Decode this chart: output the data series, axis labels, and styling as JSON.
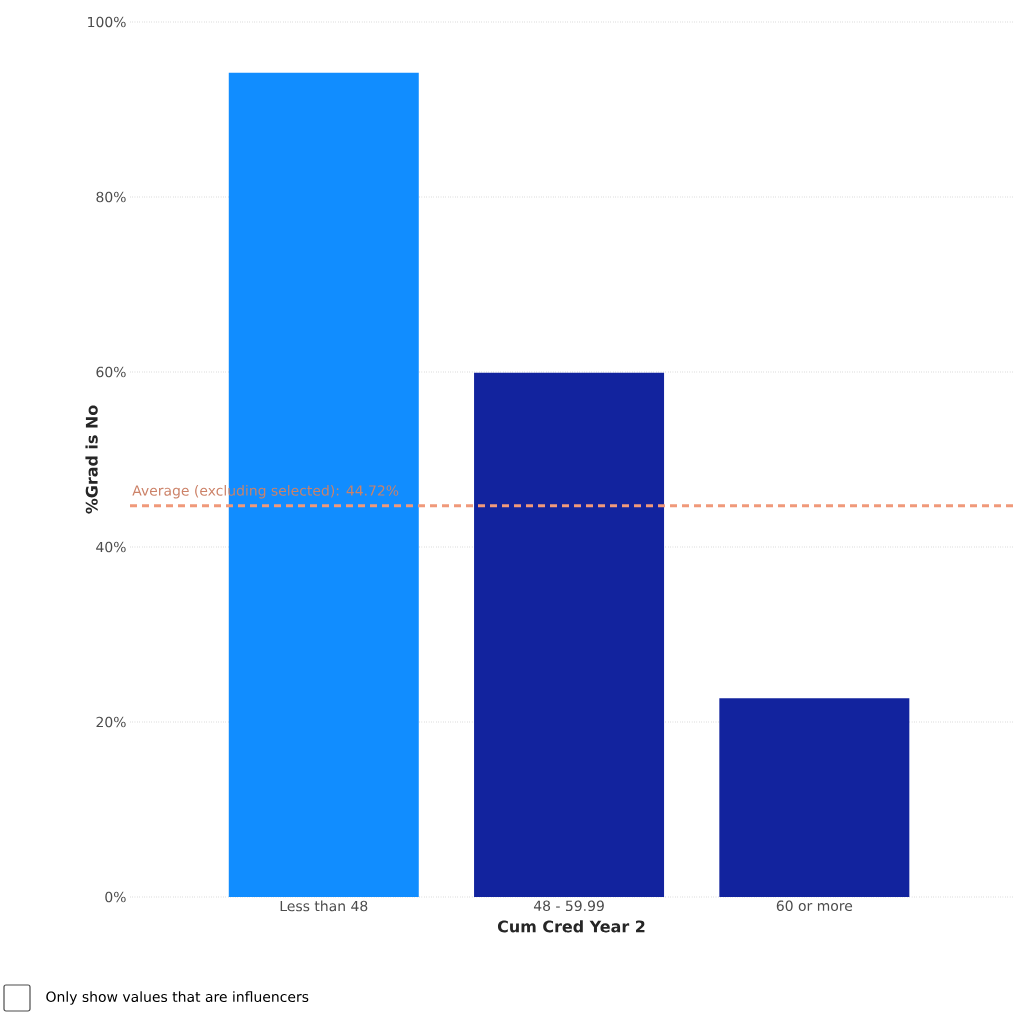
{
  "chart_data": {
    "type": "bar",
    "xlabel": "Cum Cred Year 2",
    "ylabel": "%Grad is No",
    "categories": [
      "Less than 48",
      "48 - 59.99",
      "60 or more"
    ],
    "values": [
      94.2,
      59.9,
      22.7
    ],
    "colors": [
      "#118dff",
      "#12239e",
      "#12239e"
    ],
    "ylim": [
      0,
      100
    ],
    "yticks": [
      {
        "value": 0,
        "label": "0%"
      },
      {
        "value": 20,
        "label": "20%"
      },
      {
        "value": 40,
        "label": "40%"
      },
      {
        "value": 60,
        "label": "60%"
      },
      {
        "value": 80,
        "label": "80%"
      },
      {
        "value": 100,
        "label": "100%"
      }
    ],
    "grid": "y",
    "ref_lines": [
      {
        "axis": "y",
        "value": 44.72,
        "label": "Average (excluding selected): 44.72%",
        "color": "#f0997a",
        "line_style": "dashed"
      }
    ],
    "annotations": [
      "Only show values that are influencers"
    ]
  }
}
